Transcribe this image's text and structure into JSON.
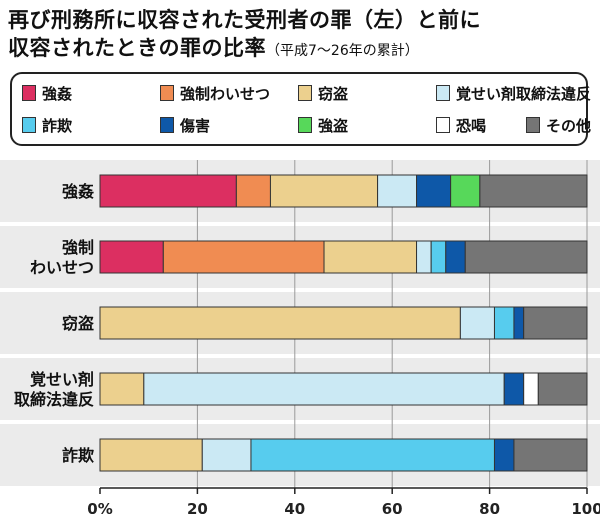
{
  "title": {
    "line1": "再び刑務所に収容された受刑者の罪（左）と前に",
    "line2": "収容されたときの罪の比率",
    "subtitle": "（平成7〜26年の累計）"
  },
  "colors": {
    "強姦": "#dc2f61",
    "強制わいせつ": "#f08c52",
    "窃盗": "#ecd08e",
    "覚せい剤取締法違反": "#cbe9f4",
    "詐欺": "#57ccee",
    "傷害": "#0e58a8",
    "強盗": "#57d85a",
    "恐喝": "#ffffff",
    "その他": "#757575"
  },
  "chart_data": {
    "type": "bar",
    "orientation": "horizontal",
    "stacked": true,
    "categories": [
      "強姦",
      "強制わいせつ",
      "窃盗",
      "覚せい剤取締法違反",
      "詐欺"
    ],
    "category_labels": [
      [
        "強姦"
      ],
      [
        "強制",
        "わいせつ"
      ],
      [
        "窃盗"
      ],
      [
        "覚せい剤",
        "取締法違反"
      ],
      [
        "詐欺"
      ]
    ],
    "series": [
      {
        "name": "強姦",
        "values": [
          28,
          13,
          0,
          0,
          0
        ]
      },
      {
        "name": "強制わいせつ",
        "values": [
          7,
          33,
          0,
          0,
          0
        ]
      },
      {
        "name": "窃盗",
        "values": [
          22,
          19,
          74,
          9,
          21
        ]
      },
      {
        "name": "覚せい剤取締法違反",
        "values": [
          8,
          3,
          7,
          74,
          10
        ]
      },
      {
        "name": "詐欺",
        "values": [
          0,
          3,
          4,
          0,
          50
        ]
      },
      {
        "name": "傷害",
        "values": [
          7,
          4,
          2,
          4,
          4
        ]
      },
      {
        "name": "強盗",
        "values": [
          6,
          0,
          0,
          0,
          0
        ]
      },
      {
        "name": "恐喝",
        "values": [
          0,
          0,
          0,
          3,
          0
        ]
      },
      {
        "name": "その他",
        "values": [
          22,
          25,
          13,
          10,
          15
        ]
      }
    ],
    "xlim": [
      0,
      100
    ],
    "xticks": [
      0,
      20,
      40,
      60,
      80,
      100
    ],
    "xtick_labels": [
      "0%",
      "20",
      "40",
      "60",
      "80",
      "100"
    ],
    "legend": [
      [
        "強姦",
        "強制わいせつ",
        "窃盗",
        "覚せい剤取締法違反"
      ],
      [
        "詐欺",
        "傷害",
        "強盗",
        "恐喝",
        "その他"
      ]
    ],
    "legend_position": "top"
  }
}
